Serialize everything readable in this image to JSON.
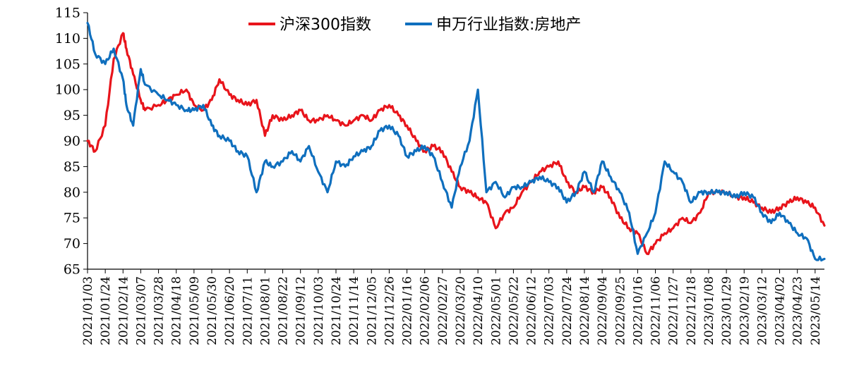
{
  "chart_data": {
    "type": "line",
    "title": "",
    "xlabel": "",
    "ylabel": "",
    "ylim": [
      65,
      115
    ],
    "yticks": [
      65,
      70,
      75,
      80,
      85,
      90,
      95,
      100,
      105,
      110,
      115
    ],
    "xticks": [
      "2021/01/03",
      "2021/01/24",
      "2021/02/14",
      "2021/03/07",
      "2021/03/28",
      "2021/04/18",
      "2021/05/09",
      "2021/05/30",
      "2021/06/20",
      "2021/07/11",
      "2021/08/01",
      "2021/08/22",
      "2021/09/12",
      "2021/10/03",
      "2021/10/24",
      "2021/11/14",
      "2021/12/05",
      "2021/12/26",
      "2022/01/16",
      "2022/02/06",
      "2022/02/27",
      "2022/03/20",
      "2022/04/10",
      "2022/05/01",
      "2022/05/22",
      "2022/06/12",
      "2022/07/03",
      "2022/07/24",
      "2022/08/14",
      "2022/09/04",
      "2022/09/25",
      "2022/10/16",
      "2022/11/06",
      "2022/11/27",
      "2022/12/18",
      "2023/01/08",
      "2023/01/29",
      "2023/02/19",
      "2023/03/12",
      "2023/04/02",
      "2023/04/23",
      "2023/05/14"
    ],
    "legend_position": "top",
    "grid": false,
    "series": [
      {
        "name": "沪深300指数",
        "color": "#e8141b",
        "x": [
          "2021/01/03",
          "2021/01/12",
          "2021/01/24",
          "2021/02/03",
          "2021/02/14",
          "2021/02/18",
          "2021/02/26",
          "2021/03/07",
          "2021/03/12",
          "2021/03/28",
          "2021/04/08",
          "2021/04/18",
          "2021/04/30",
          "2021/05/09",
          "2021/05/20",
          "2021/05/30",
          "2021/06/08",
          "2021/06/20",
          "2021/06/30",
          "2021/07/11",
          "2021/07/22",
          "2021/08/01",
          "2021/08/10",
          "2021/08/22",
          "2021/09/02",
          "2021/09/12",
          "2021/09/22",
          "2021/10/03",
          "2021/10/14",
          "2021/10/24",
          "2021/11/04",
          "2021/11/14",
          "2021/11/25",
          "2021/12/05",
          "2021/12/15",
          "2021/12/26",
          "2022/01/06",
          "2022/01/16",
          "2022/01/27",
          "2022/02/06",
          "2022/02/16",
          "2022/02/27",
          "2022/03/10",
          "2022/03/20",
          "2022/03/31",
          "2022/04/10",
          "2022/04/20",
          "2022/05/01",
          "2022/05/12",
          "2022/05/22",
          "2022/06/01",
          "2022/06/12",
          "2022/06/22",
          "2022/07/03",
          "2022/07/14",
          "2022/07/24",
          "2022/08/04",
          "2022/08/14",
          "2022/08/25",
          "2022/09/04",
          "2022/09/14",
          "2022/09/25",
          "2022/10/06",
          "2022/10/16",
          "2022/10/27",
          "2022/11/06",
          "2022/11/17",
          "2022/11/27",
          "2022/12/08",
          "2022/12/18",
          "2022/12/29",
          "2023/01/08",
          "2023/01/19",
          "2023/01/29",
          "2023/02/09",
          "2023/02/19",
          "2023/03/02",
          "2023/03/12",
          "2023/03/23",
          "2023/04/02",
          "2023/04/13",
          "2023/04/23",
          "2023/05/04",
          "2023/05/14",
          "2023/05/25"
        ],
        "values": [
          90,
          88,
          93,
          106,
          111,
          108,
          103,
          98,
          96,
          97,
          98,
          99,
          100,
          97,
          96,
          98,
          102,
          99,
          98,
          97,
          98,
          91,
          95,
          94,
          95,
          96,
          94,
          94,
          95,
          94,
          93,
          94,
          95,
          94,
          96,
          97,
          95,
          93,
          90,
          88,
          89,
          88,
          84,
          81,
          80,
          79,
          78,
          73,
          76,
          77,
          80,
          82,
          84,
          85,
          86,
          82,
          80,
          81,
          80,
          81,
          79,
          75,
          73,
          72,
          68,
          70,
          72,
          73,
          75,
          74,
          76,
          80,
          80,
          80,
          79,
          79,
          78,
          77,
          76,
          77,
          78,
          79,
          78,
          77,
          73.5
        ]
      },
      {
        "name": "申万行业指数:房地产",
        "color": "#0f6fbe",
        "x": [
          "2021/01/03",
          "2021/01/12",
          "2021/01/24",
          "2021/02/03",
          "2021/02/14",
          "2021/02/18",
          "2021/02/26",
          "2021/03/07",
          "2021/03/12",
          "2021/03/28",
          "2021/04/08",
          "2021/04/18",
          "2021/04/30",
          "2021/05/09",
          "2021/05/20",
          "2021/05/30",
          "2021/06/08",
          "2021/06/20",
          "2021/06/30",
          "2021/07/11",
          "2021/07/22",
          "2021/08/01",
          "2021/08/10",
          "2021/08/22",
          "2021/09/02",
          "2021/09/12",
          "2021/09/22",
          "2021/10/03",
          "2021/10/14",
          "2021/10/24",
          "2021/11/04",
          "2021/11/14",
          "2021/11/25",
          "2021/12/05",
          "2021/12/15",
          "2021/12/26",
          "2022/01/06",
          "2022/01/16",
          "2022/01/27",
          "2022/02/06",
          "2022/02/16",
          "2022/02/27",
          "2022/03/10",
          "2022/03/20",
          "2022/03/31",
          "2022/04/10",
          "2022/04/20",
          "2022/05/01",
          "2022/05/12",
          "2022/05/22",
          "2022/06/01",
          "2022/06/12",
          "2022/06/22",
          "2022/07/03",
          "2022/07/14",
          "2022/07/24",
          "2022/08/04",
          "2022/08/14",
          "2022/08/25",
          "2022/09/04",
          "2022/09/14",
          "2022/09/25",
          "2022/10/06",
          "2022/10/16",
          "2022/10/27",
          "2022/11/06",
          "2022/11/17",
          "2022/11/27",
          "2022/12/08",
          "2022/12/18",
          "2022/12/29",
          "2023/01/08",
          "2023/01/19",
          "2023/01/29",
          "2023/02/09",
          "2023/02/19",
          "2023/03/02",
          "2023/03/12",
          "2023/03/23",
          "2023/04/02",
          "2023/04/13",
          "2023/04/23",
          "2023/05/04",
          "2023/05/14",
          "2023/05/25"
        ],
        "values": [
          113,
          107,
          105,
          108,
          102,
          97,
          93,
          104,
          101,
          99,
          98,
          97,
          96,
          96,
          97,
          93,
          91,
          90,
          88,
          87,
          80,
          86,
          85,
          86,
          88,
          86,
          89,
          84,
          80,
          86,
          85,
          87,
          88,
          89,
          92,
          93,
          91,
          87,
          88,
          89,
          87,
          82,
          77,
          85,
          90,
          100,
          80,
          82,
          79,
          81,
          81,
          82,
          83,
          82,
          81,
          78,
          80,
          84,
          80,
          86,
          83,
          80,
          76,
          68,
          72,
          76,
          86,
          84,
          82,
          78,
          80,
          80,
          80,
          80,
          79,
          80,
          79,
          76,
          74,
          76,
          74,
          72,
          71,
          67,
          67
        ]
      }
    ]
  }
}
